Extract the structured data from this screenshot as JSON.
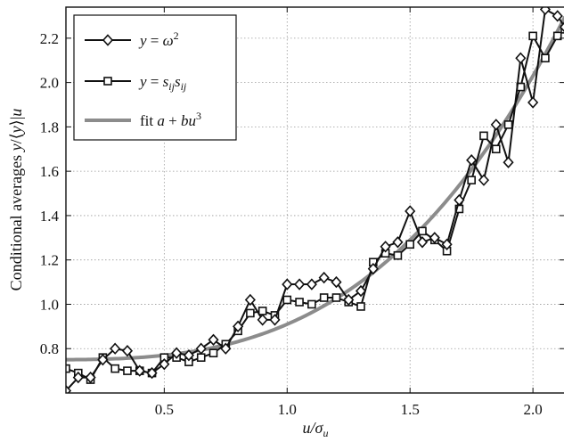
{
  "chart_data": {
    "type": "line",
    "title": "",
    "xlabel": "u/σ_u",
    "ylabel": "Conditional averages y/⟨y⟩|u",
    "xlim": [
      0.1,
      2.13
    ],
    "ylim": [
      0.6,
      2.34
    ],
    "xticks": [
      0.5,
      1.0,
      1.5,
      2.0
    ],
    "xtick_labels": [
      "0.5",
      "1.0",
      "1.5",
      "2.0"
    ],
    "yticks": [
      0.8,
      1.0,
      1.2,
      1.4,
      1.6,
      1.8,
      2.0,
      2.2
    ],
    "ytick_labels": [
      "0.8",
      "1.0",
      "1.2",
      "1.4",
      "1.6",
      "1.8",
      "2.0",
      "2.2"
    ],
    "grid": true,
    "legend_position": "top-left",
    "series": [
      {
        "name": "y = ω²",
        "marker": "diamond",
        "color": "#111111",
        "x": [
          0.1,
          0.15,
          0.2,
          0.25,
          0.3,
          0.35,
          0.4,
          0.45,
          0.5,
          0.55,
          0.6,
          0.65,
          0.7,
          0.75,
          0.8,
          0.85,
          0.9,
          0.95,
          1.0,
          1.05,
          1.1,
          1.15,
          1.2,
          1.25,
          1.3,
          1.35,
          1.4,
          1.45,
          1.5,
          1.55,
          1.6,
          1.65,
          1.7,
          1.75,
          1.8,
          1.85,
          1.9,
          1.95,
          2.0,
          2.05,
          2.1,
          2.13
        ],
        "y": [
          0.61,
          0.67,
          0.67,
          0.75,
          0.8,
          0.79,
          0.7,
          0.69,
          0.73,
          0.78,
          0.77,
          0.8,
          0.84,
          0.8,
          0.9,
          1.02,
          0.93,
          0.93,
          1.09,
          1.09,
          1.09,
          1.12,
          1.1,
          1.02,
          1.06,
          1.16,
          1.26,
          1.28,
          1.42,
          1.28,
          1.3,
          1.27,
          1.47,
          1.65,
          1.56,
          1.81,
          1.64,
          2.11,
          1.91,
          2.33,
          2.3,
          2.25
        ]
      },
      {
        "name": "y = s_ij s_ij",
        "marker": "square",
        "color": "#111111",
        "x": [
          0.1,
          0.15,
          0.2,
          0.25,
          0.3,
          0.35,
          0.4,
          0.45,
          0.5,
          0.55,
          0.6,
          0.65,
          0.7,
          0.75,
          0.8,
          0.85,
          0.9,
          0.95,
          1.0,
          1.05,
          1.1,
          1.15,
          1.2,
          1.25,
          1.3,
          1.35,
          1.4,
          1.45,
          1.5,
          1.55,
          1.6,
          1.65,
          1.7,
          1.75,
          1.8,
          1.85,
          1.9,
          1.95,
          2.0,
          2.05,
          2.1,
          2.13
        ],
        "y": [
          0.71,
          0.69,
          0.66,
          0.76,
          0.71,
          0.7,
          0.7,
          0.69,
          0.76,
          0.76,
          0.74,
          0.76,
          0.78,
          0.82,
          0.88,
          0.96,
          0.97,
          0.95,
          1.02,
          1.01,
          1.0,
          1.03,
          1.03,
          1.01,
          0.99,
          1.19,
          1.23,
          1.22,
          1.27,
          1.33,
          1.29,
          1.24,
          1.43,
          1.56,
          1.76,
          1.7,
          1.81,
          1.98,
          2.21,
          2.11,
          2.21,
          2.24
        ]
      },
      {
        "name": "fit a + bu³",
        "marker": "none",
        "color": "#8c8c8c",
        "fit": {
          "a": 0.75,
          "b": 0.16
        }
      }
    ]
  }
}
